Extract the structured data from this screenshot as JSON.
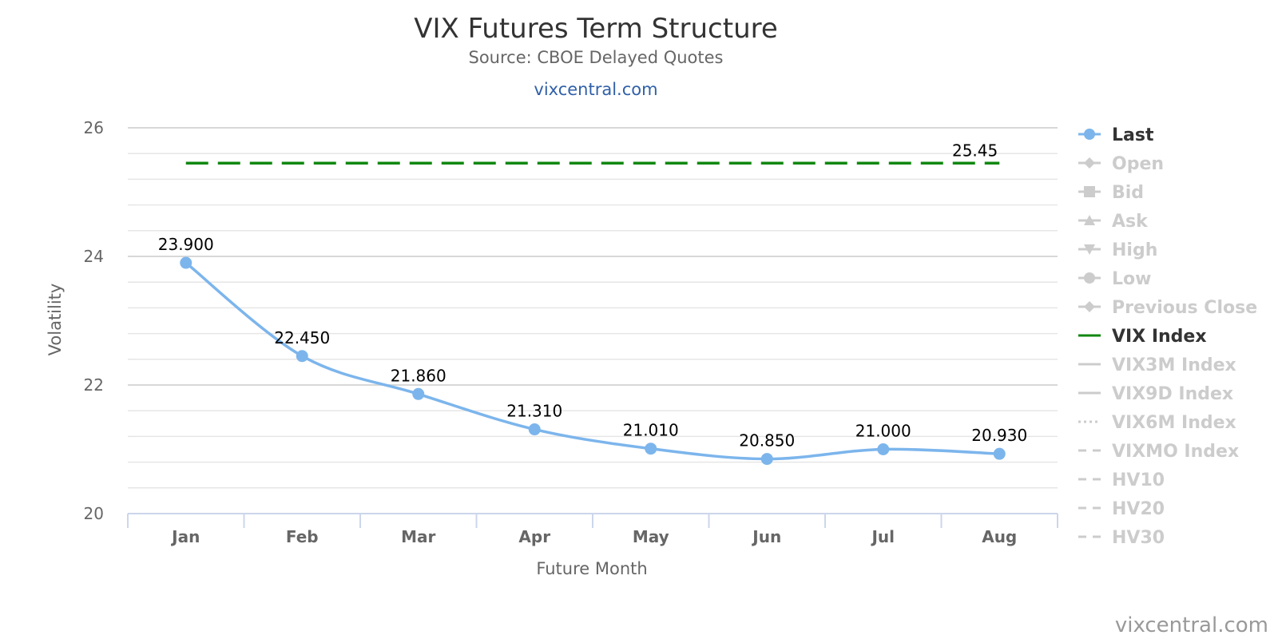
{
  "chart_data": {
    "type": "line",
    "title": "VIX Futures Term Structure",
    "subtitle": "Source: CBOE Delayed Quotes",
    "subtitle_link": "vixcentral.com",
    "xlabel": "Future Month",
    "ylabel": "Volatility",
    "categories": [
      "Jan",
      "Feb",
      "Mar",
      "Apr",
      "May",
      "Jun",
      "Jul",
      "Aug"
    ],
    "ylim": [
      20,
      26
    ],
    "yticks": [
      20,
      22,
      24,
      26
    ],
    "grid": true,
    "legend_position": "right",
    "series": [
      {
        "name": "Last",
        "color": "#7cb5ec",
        "values": [
          23.9,
          22.45,
          21.86,
          21.31,
          21.01,
          20.85,
          21.0,
          20.93
        ],
        "value_labels": [
          "23.900",
          "22.450",
          "21.860",
          "21.310",
          "21.010",
          "20.850",
          "21.000",
          "20.930"
        ]
      },
      {
        "name": "VIX Index",
        "color": "#118811",
        "style": "dashed",
        "value": 25.45,
        "value_label": "25.45"
      }
    ],
    "legend": [
      {
        "label": "Last",
        "symbol": "circle-line",
        "active": true,
        "color": "#7cb5ec"
      },
      {
        "label": "Open",
        "symbol": "diamond-line",
        "active": false
      },
      {
        "label": "Bid",
        "symbol": "square-line",
        "active": false
      },
      {
        "label": "Ask",
        "symbol": "triangle-line",
        "active": false
      },
      {
        "label": "High",
        "symbol": "triangle-down-line",
        "active": false
      },
      {
        "label": "Low",
        "symbol": "circle-line",
        "active": false
      },
      {
        "label": "Previous Close",
        "symbol": "diamond-line",
        "active": false
      },
      {
        "label": "VIX Index",
        "symbol": "line",
        "active": true,
        "color": "#118811"
      },
      {
        "label": "VIX3M Index",
        "symbol": "line",
        "active": false
      },
      {
        "label": "VIX9D Index",
        "symbol": "line",
        "active": false
      },
      {
        "label": "VIX6M Index",
        "symbol": "dotted-line",
        "active": false
      },
      {
        "label": "VIXMO Index",
        "symbol": "dash-line",
        "active": false
      },
      {
        "label": "HV10",
        "symbol": "dash-line",
        "active": false
      },
      {
        "label": "HV20",
        "symbol": "dash-line",
        "active": false
      },
      {
        "label": "HV30",
        "symbol": "dash-line",
        "active": false
      }
    ],
    "credit": "vixcentral.com"
  }
}
